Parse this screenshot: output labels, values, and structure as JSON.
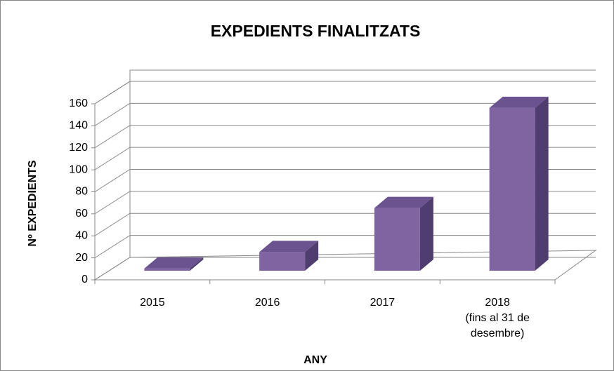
{
  "chart_data": {
    "type": "bar3d",
    "title": "EXPEDIENTS FINALITZATS",
    "x_label": "ANY",
    "y_label": "Nº EXPEDIENTS",
    "categories": [
      "2015",
      "2016",
      "2017",
      "2018\n(fins al 31 de\ndesembre)"
    ],
    "values": [
      2,
      17,
      57,
      148
    ],
    "color": "#8064a2",
    "ylim": [
      0,
      160
    ],
    "yticks": [
      0,
      20,
      40,
      60,
      80,
      100,
      120,
      140,
      160
    ],
    "grid": true
  }
}
